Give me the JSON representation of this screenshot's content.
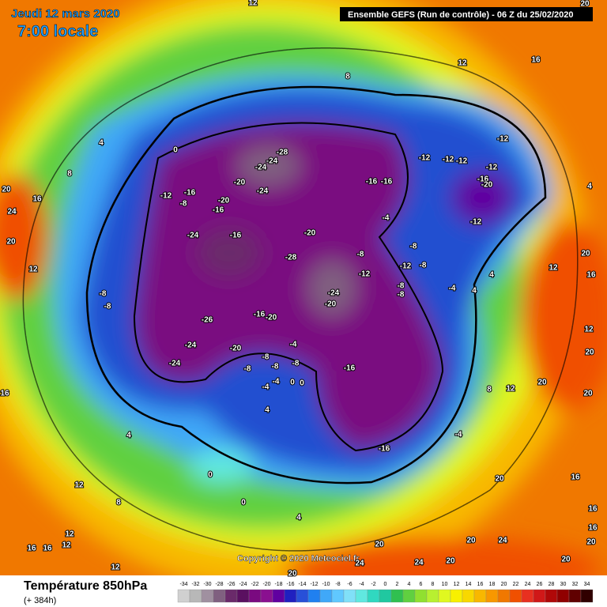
{
  "header": {
    "date": "Jeudi 12 mars 2020",
    "time": "7:00 locale",
    "run": "Ensemble GEFS  (Run de contrôle)  -  06 Z du 25/02/2020"
  },
  "copyright": "Copyright © 2020 Meteociel.fr",
  "footer": {
    "title": "Température 850hPa",
    "lead": "(+ 384h)"
  },
  "scale": {
    "labels": [
      -34,
      -32,
      -30,
      -28,
      -26,
      -24,
      -22,
      -20,
      -18,
      -16,
      -14,
      -12,
      -10,
      -8,
      -6,
      -4,
      -2,
      0,
      2,
      4,
      6,
      8,
      10,
      12,
      14,
      16,
      18,
      20,
      22,
      24,
      26,
      28,
      30,
      32,
      34
    ],
    "colors": [
      "#d0d0d0",
      "#b8b8b8",
      "#a090a0",
      "#806080",
      "#6a2a6a",
      "#5a1060",
      "#7a0a80",
      "#8a1090",
      "#6000a0",
      "#2020c0",
      "#2850d8",
      "#2080f0",
      "#40a8f8",
      "#60c8ff",
      "#80e0f8",
      "#60e8e0",
      "#30d8c0",
      "#20c8a0",
      "#30c050",
      "#60d040",
      "#90e030",
      "#b8f030",
      "#e0f820",
      "#f8f000",
      "#f8d800",
      "#f8b800",
      "#f89800",
      "#f07800",
      "#f05000",
      "#e83020",
      "#d01818",
      "#b00808",
      "#900000",
      "#600000",
      "#300000"
    ]
  },
  "map": {
    "contour_labels": [
      0,
      4,
      8,
      20,
      24,
      16,
      20,
      12,
      -8,
      -8,
      -12,
      -16,
      -8,
      -16,
      -20,
      -20,
      -24,
      -28,
      -24,
      -24,
      -24,
      -16,
      -20,
      -28,
      -24,
      -20,
      -16,
      -16,
      -12,
      -12,
      -12,
      -12,
      -16,
      -20,
      -12,
      -12,
      -4,
      -8,
      -8,
      -12,
      -8,
      -12,
      -8,
      -8,
      -4,
      4,
      4,
      -24,
      -24,
      -26,
      -20,
      -16,
      -20,
      -4,
      -8,
      -8,
      -8,
      -8,
      -16,
      0,
      0,
      -4,
      -4,
      4,
      4,
      0,
      0,
      4,
      -16,
      -4,
      8,
      12,
      20,
      20,
      20,
      12,
      12,
      20,
      16,
      4,
      16,
      12,
      8,
      12,
      20,
      16,
      12,
      8,
      16,
      16,
      12,
      12,
      12,
      20,
      24,
      20,
      20,
      16,
      16,
      16,
      24,
      20,
      20,
      24,
      20,
      20
    ]
  }
}
